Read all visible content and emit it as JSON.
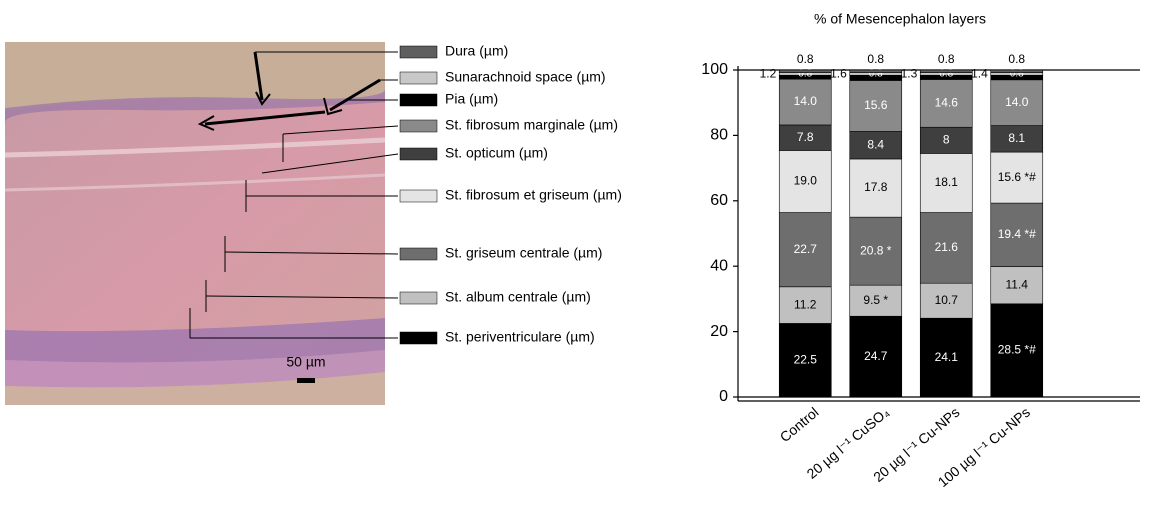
{
  "chart_data": {
    "type": "stacked_bar",
    "title": "% of Mesencephalon layers",
    "categories": [
      "Control",
      "20 µg l⁻¹ CuSO₄",
      "20 µg l⁻¹ Cu-NPs",
      "100 µg l⁻¹ Cu-NPs"
    ],
    "ylim": [
      0,
      100
    ],
    "yticks": [
      0,
      20,
      40,
      60,
      80,
      100
    ],
    "scale_bar": "50 µm",
    "series": [
      {
        "name": "Dura (µm)",
        "color": "#5f5f5f",
        "values": [
          0.8,
          0.8,
          0.8,
          0.8
        ]
      },
      {
        "name": "Sunarachnoid space (µm)",
        "color": "#c8c8c8",
        "values": [
          0.8,
          0.8,
          0.8,
          0.8
        ]
      },
      {
        "name": "Pia (µm)",
        "color": "#000000",
        "values": [
          1.2,
          1.6,
          1.3,
          1.4
        ]
      },
      {
        "name": "St. fibrosum marginale (µm)",
        "color": "#8a8a8a",
        "values": [
          14.0,
          15.6,
          14.6,
          14.0
        ],
        "value_labels": [
          "14.0",
          "15.6",
          "14.6",
          "14.0"
        ]
      },
      {
        "name": "St. opticum (µm)",
        "color": "#3f3f3f",
        "values": [
          7.8,
          8.4,
          8.0,
          8.1
        ]
      },
      {
        "name": "St. fibrosum et griseum (µm)",
        "color": "#e4e4e4",
        "values": [
          19.0,
          17.8,
          18.1,
          15.6
        ],
        "value_labels": [
          "19.0",
          "17.8",
          "18.1",
          "15.6 *#"
        ]
      },
      {
        "name": "St. griseum centrale (µm)",
        "color": "#6e6e6e",
        "values": [
          22.7,
          20.8,
          21.6,
          19.4
        ],
        "value_labels": [
          "22.7",
          "20.8 *",
          "21.6",
          "19.4 *#"
        ]
      },
      {
        "name": "St. album centrale (µm)",
        "color": "#c0c0c0",
        "values": [
          11.2,
          9.5,
          10.7,
          11.4
        ],
        "value_labels": [
          "11.2",
          "9.5 *",
          "10.7",
          "11.4"
        ]
      },
      {
        "name": "St. periventriculare (µm)",
        "color": "#000000",
        "values": [
          22.5,
          24.7,
          24.1,
          28.5
        ],
        "value_labels": [
          "22.5",
          "24.7",
          "24.1",
          "28.5 *#"
        ]
      }
    ]
  }
}
